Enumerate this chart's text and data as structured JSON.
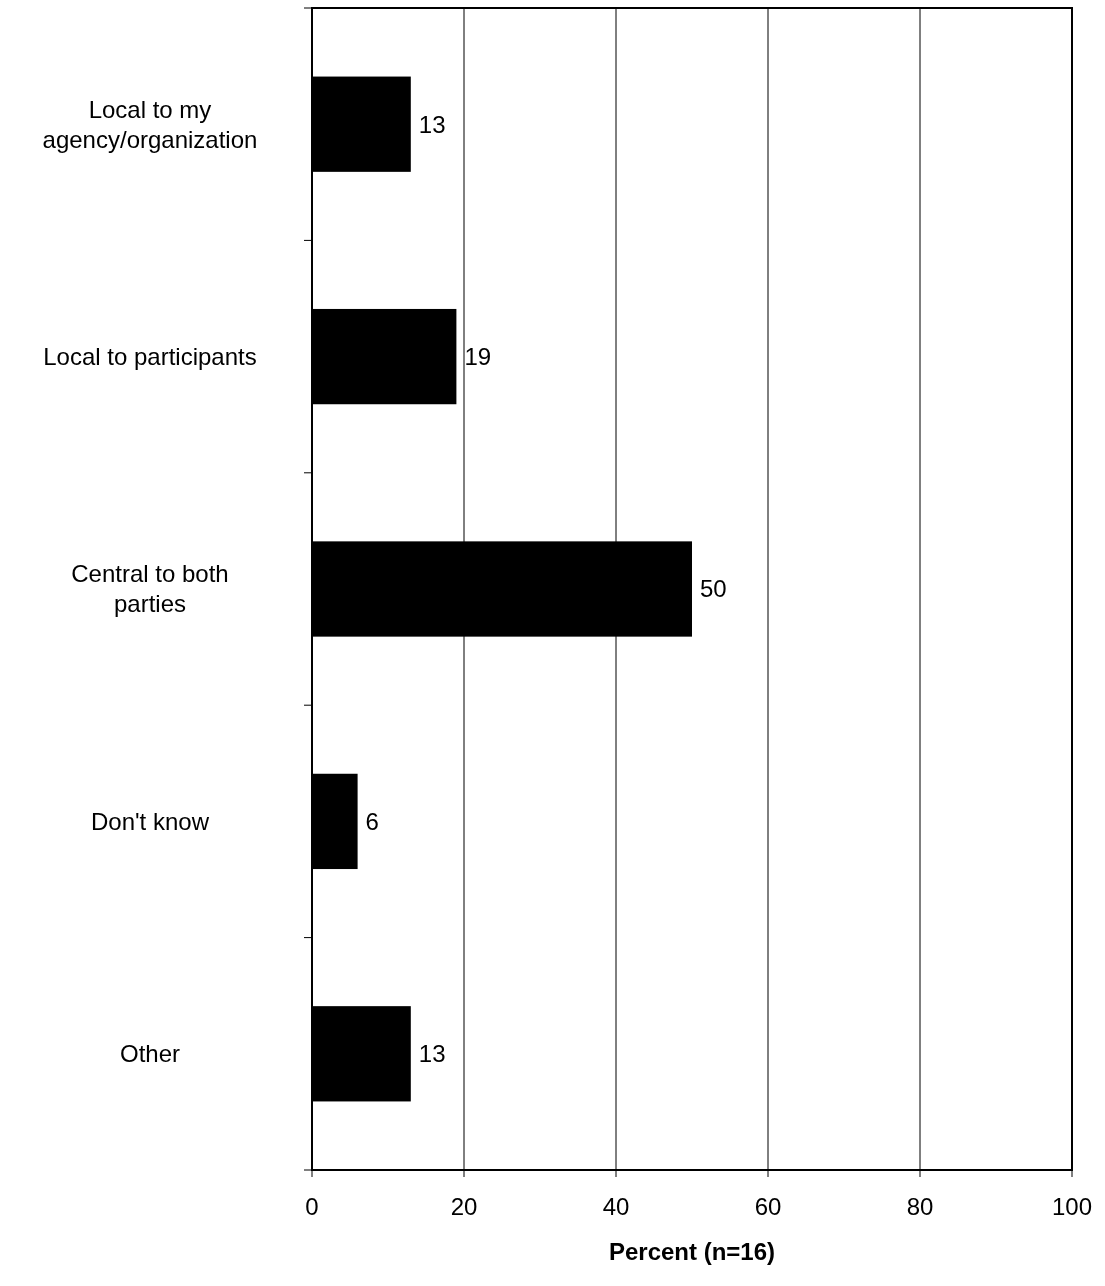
{
  "chart_data": {
    "type": "bar",
    "orientation": "horizontal",
    "xlabel": "Percent (n=16)",
    "categories": [
      "Local to my agency/organization",
      "Local to participants",
      "Central to both parties",
      "Don't know",
      "Other"
    ],
    "values": [
      13,
      19,
      50,
      6,
      13
    ],
    "color": "#000000",
    "xlim": [
      0,
      100
    ],
    "xticks": [
      0,
      20,
      40,
      60,
      80,
      100
    ],
    "grid": "x",
    "data_labels": true
  }
}
